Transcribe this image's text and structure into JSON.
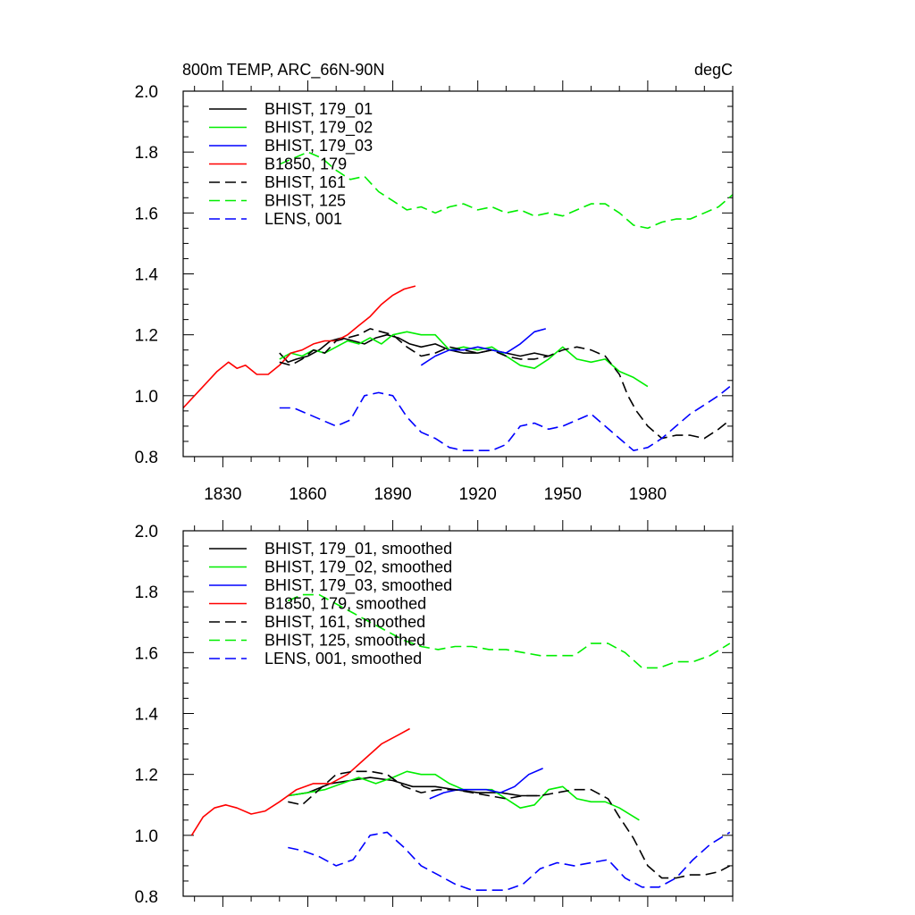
{
  "chart_data": [
    {
      "type": "line",
      "title": "800m TEMP, ARC_66N-90N",
      "units": "degC",
      "xlim": [
        1816,
        2010
      ],
      "ylim": [
        0.8,
        2.0
      ],
      "x_ticks": [
        1830,
        1860,
        1890,
        1920,
        1950,
        1980
      ],
      "x_tick_labels": [
        "1830",
        "1860",
        "1890",
        "1920",
        "1950",
        "1980"
      ],
      "y_ticks": [
        0.8,
        1.0,
        1.2,
        1.4,
        1.6,
        1.8,
        2.0
      ],
      "y_tick_labels": [
        "0.8",
        "1.0",
        "1.2",
        "1.4",
        "1.6",
        "1.8",
        "2.0"
      ],
      "legend_position": "top-left",
      "series": [
        {
          "name": "BHIST, 179_01",
          "color": "#000000",
          "dash": "solid",
          "x": [
            1850,
            1853,
            1856,
            1860,
            1864,
            1868,
            1872,
            1876,
            1880,
            1884,
            1888,
            1892,
            1896,
            1900,
            1905,
            1910,
            1915,
            1920,
            1925,
            1930,
            1935,
            1940,
            1945
          ],
          "y": [
            1.14,
            1.11,
            1.12,
            1.13,
            1.15,
            1.18,
            1.19,
            1.18,
            1.17,
            1.19,
            1.2,
            1.19,
            1.17,
            1.16,
            1.17,
            1.15,
            1.14,
            1.14,
            1.15,
            1.14,
            1.13,
            1.14,
            1.13
          ]
        },
        {
          "name": "BHIST, 179_02",
          "color": "#00ee00",
          "dash": "solid",
          "x": [
            1850,
            1854,
            1858,
            1862,
            1866,
            1870,
            1874,
            1878,
            1882,
            1886,
            1890,
            1895,
            1900,
            1905,
            1910,
            1915,
            1920,
            1925,
            1930,
            1935,
            1940,
            1945,
            1950,
            1955,
            1960,
            1965,
            1970,
            1975,
            1980
          ],
          "y": [
            1.12,
            1.14,
            1.13,
            1.15,
            1.14,
            1.16,
            1.18,
            1.17,
            1.19,
            1.17,
            1.2,
            1.21,
            1.2,
            1.2,
            1.15,
            1.16,
            1.15,
            1.16,
            1.13,
            1.1,
            1.09,
            1.12,
            1.16,
            1.12,
            1.11,
            1.12,
            1.08,
            1.06,
            1.03
          ]
        },
        {
          "name": "BHIST, 179_03",
          "color": "#0000ff",
          "dash": "solid",
          "x": [
            1900,
            1905,
            1910,
            1915,
            1920,
            1925,
            1930,
            1935,
            1940,
            1944
          ],
          "y": [
            1.1,
            1.13,
            1.15,
            1.15,
            1.16,
            1.15,
            1.14,
            1.17,
            1.21,
            1.22
          ]
        },
        {
          "name": "B1850, 179",
          "color": "#ff0000",
          "dash": "solid",
          "x": [
            1816,
            1820,
            1824,
            1828,
            1832,
            1835,
            1838,
            1842,
            1846,
            1850,
            1854,
            1858,
            1862,
            1866,
            1870,
            1874,
            1878,
            1882,
            1886,
            1890,
            1894,
            1898
          ],
          "y": [
            0.96,
            1.0,
            1.04,
            1.08,
            1.11,
            1.09,
            1.1,
            1.07,
            1.07,
            1.1,
            1.14,
            1.15,
            1.17,
            1.18,
            1.18,
            1.2,
            1.23,
            1.26,
            1.3,
            1.33,
            1.35,
            1.36
          ]
        },
        {
          "name": "BHIST, 161",
          "color": "#000000",
          "dash": "dashed",
          "x": [
            1850,
            1854,
            1858,
            1862,
            1866,
            1870,
            1874,
            1878,
            1882,
            1886,
            1890,
            1895,
            1900,
            1905,
            1910,
            1915,
            1920,
            1925,
            1930,
            1935,
            1940,
            1945,
            1950,
            1955,
            1960,
            1965,
            1970,
            1973,
            1976,
            1980,
            1985,
            1990,
            1995,
            2000,
            2005,
            2009
          ],
          "y": [
            1.11,
            1.1,
            1.12,
            1.15,
            1.14,
            1.18,
            1.19,
            1.2,
            1.22,
            1.21,
            1.2,
            1.16,
            1.13,
            1.14,
            1.16,
            1.15,
            1.14,
            1.15,
            1.13,
            1.12,
            1.12,
            1.13,
            1.15,
            1.16,
            1.15,
            1.13,
            1.07,
            1.0,
            0.95,
            0.9,
            0.86,
            0.87,
            0.87,
            0.86,
            0.89,
            0.92
          ]
        },
        {
          "name": "BHIST, 125",
          "color": "#00ee00",
          "dash": "dashed",
          "x": [
            1850,
            1855,
            1860,
            1865,
            1870,
            1875,
            1880,
            1885,
            1890,
            1895,
            1900,
            1905,
            1910,
            1915,
            1920,
            1925,
            1930,
            1935,
            1940,
            1945,
            1950,
            1955,
            1960,
            1965,
            1970,
            1975,
            1980,
            1985,
            1990,
            1995,
            2000,
            2005,
            2010
          ],
          "y": [
            1.76,
            1.78,
            1.8,
            1.78,
            1.74,
            1.71,
            1.72,
            1.67,
            1.64,
            1.61,
            1.62,
            1.6,
            1.62,
            1.63,
            1.61,
            1.62,
            1.6,
            1.61,
            1.59,
            1.6,
            1.59,
            1.61,
            1.63,
            1.63,
            1.6,
            1.56,
            1.55,
            1.57,
            1.58,
            1.58,
            1.6,
            1.62,
            1.66
          ]
        },
        {
          "name": "LENS, 001",
          "color": "#0000ff",
          "dash": "dashed",
          "x": [
            1850,
            1855,
            1860,
            1865,
            1870,
            1875,
            1880,
            1885,
            1890,
            1895,
            1900,
            1905,
            1910,
            1915,
            1920,
            1925,
            1930,
            1935,
            1940,
            1945,
            1950,
            1955,
            1960,
            1965,
            1970,
            1975,
            1980,
            1985,
            1990,
            1995,
            2000,
            2005,
            2009
          ],
          "y": [
            0.96,
            0.96,
            0.94,
            0.92,
            0.9,
            0.92,
            1.0,
            1.01,
            1.0,
            0.93,
            0.88,
            0.86,
            0.83,
            0.82,
            0.82,
            0.82,
            0.84,
            0.9,
            0.91,
            0.89,
            0.9,
            0.92,
            0.94,
            0.9,
            0.86,
            0.82,
            0.83,
            0.86,
            0.9,
            0.94,
            0.97,
            1.0,
            1.03
          ]
        }
      ]
    },
    {
      "type": "line",
      "xlim": [
        1816,
        2010
      ],
      "ylim": [
        0.8,
        2.0
      ],
      "x_ticks": [
        1830,
        1860,
        1890,
        1920,
        1950,
        1980
      ],
      "y_ticks": [
        0.8,
        1.0,
        1.2,
        1.4,
        1.6,
        1.8,
        2.0
      ],
      "y_tick_labels": [
        "0.8",
        "1.0",
        "1.2",
        "1.4",
        "1.6",
        "1.8",
        "2.0"
      ],
      "legend_position": "top-left",
      "series": [
        {
          "name": "BHIST, 179_01, smoothed",
          "color": "#000000",
          "dash": "solid",
          "x": [
            1853,
            1860,
            1868,
            1875,
            1882,
            1890,
            1897,
            1905,
            1912,
            1920,
            1928,
            1935,
            1942
          ],
          "y": [
            1.13,
            1.14,
            1.17,
            1.18,
            1.19,
            1.18,
            1.16,
            1.16,
            1.15,
            1.14,
            1.14,
            1.13,
            1.13
          ]
        },
        {
          "name": "BHIST, 179_02, smoothed",
          "color": "#00ee00",
          "dash": "solid",
          "x": [
            1853,
            1860,
            1866,
            1872,
            1878,
            1884,
            1890,
            1895,
            1900,
            1905,
            1910,
            1915,
            1920,
            1925,
            1930,
            1935,
            1940,
            1945,
            1950,
            1955,
            1960,
            1965,
            1970,
            1977
          ],
          "y": [
            1.13,
            1.14,
            1.15,
            1.17,
            1.19,
            1.17,
            1.19,
            1.21,
            1.2,
            1.2,
            1.17,
            1.15,
            1.15,
            1.15,
            1.12,
            1.09,
            1.1,
            1.15,
            1.16,
            1.12,
            1.11,
            1.11,
            1.09,
            1.05
          ]
        },
        {
          "name": "BHIST, 179_03, smoothed",
          "color": "#0000ff",
          "dash": "solid",
          "x": [
            1903,
            1908,
            1913,
            1918,
            1923,
            1928,
            1933,
            1938,
            1943
          ],
          "y": [
            1.12,
            1.14,
            1.15,
            1.15,
            1.15,
            1.14,
            1.16,
            1.2,
            1.22
          ]
        },
        {
          "name": "B1850, 179, smoothed",
          "color": "#ff0000",
          "dash": "solid",
          "x": [
            1819,
            1823,
            1827,
            1831,
            1835,
            1840,
            1845,
            1850,
            1856,
            1862,
            1868,
            1874,
            1880,
            1886,
            1892,
            1896
          ],
          "y": [
            1.0,
            1.06,
            1.09,
            1.1,
            1.09,
            1.07,
            1.08,
            1.11,
            1.15,
            1.17,
            1.17,
            1.2,
            1.25,
            1.3,
            1.33,
            1.35
          ]
        },
        {
          "name": "BHIST, 161, smoothed",
          "color": "#000000",
          "dash": "dashed",
          "x": [
            1853,
            1858,
            1864,
            1870,
            1876,
            1882,
            1888,
            1894,
            1900,
            1906,
            1912,
            1918,
            1924,
            1930,
            1936,
            1942,
            1948,
            1954,
            1960,
            1966,
            1970,
            1975,
            1980,
            1985,
            1990,
            1995,
            2000,
            2005,
            2009
          ],
          "y": [
            1.11,
            1.1,
            1.15,
            1.2,
            1.21,
            1.21,
            1.2,
            1.16,
            1.14,
            1.15,
            1.15,
            1.14,
            1.13,
            1.12,
            1.13,
            1.13,
            1.14,
            1.15,
            1.15,
            1.12,
            1.06,
            0.99,
            0.9,
            0.86,
            0.86,
            0.87,
            0.87,
            0.88,
            0.9
          ]
        },
        {
          "name": "BHIST, 125, smoothed",
          "color": "#00ee00",
          "dash": "dashed",
          "x": [
            1853,
            1858,
            1864,
            1870,
            1876,
            1882,
            1888,
            1894,
            1900,
            1906,
            1912,
            1918,
            1924,
            1930,
            1936,
            1942,
            1948,
            1954,
            1960,
            1966,
            1972,
            1978,
            1984,
            1990,
            1996,
            2002,
            2009
          ],
          "y": [
            1.77,
            1.79,
            1.79,
            1.76,
            1.73,
            1.7,
            1.67,
            1.64,
            1.62,
            1.61,
            1.62,
            1.62,
            1.61,
            1.61,
            1.6,
            1.59,
            1.59,
            1.59,
            1.63,
            1.63,
            1.6,
            1.55,
            1.55,
            1.57,
            1.57,
            1.59,
            1.63
          ]
        },
        {
          "name": "LENS, 001, smoothed",
          "color": "#0000ff",
          "dash": "dashed",
          "x": [
            1853,
            1858,
            1864,
            1870,
            1876,
            1882,
            1888,
            1894,
            1900,
            1906,
            1912,
            1918,
            1924,
            1930,
            1936,
            1942,
            1948,
            1954,
            1960,
            1966,
            1972,
            1978,
            1984,
            1990,
            1996,
            2002,
            2009
          ],
          "y": [
            0.96,
            0.95,
            0.93,
            0.9,
            0.92,
            1.0,
            1.01,
            0.96,
            0.9,
            0.87,
            0.84,
            0.82,
            0.82,
            0.82,
            0.84,
            0.89,
            0.91,
            0.9,
            0.91,
            0.92,
            0.86,
            0.83,
            0.83,
            0.86,
            0.92,
            0.97,
            1.01
          ]
        }
      ]
    }
  ]
}
